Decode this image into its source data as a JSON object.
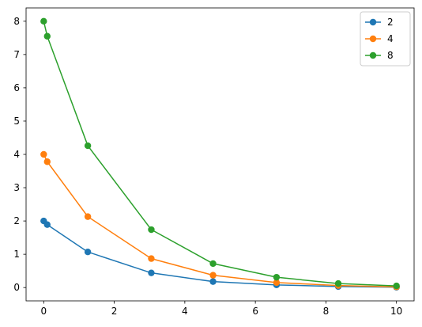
{
  "chart_data": {
    "type": "line",
    "title": "",
    "xlabel": "",
    "ylabel": "",
    "xlim": [
      -0.5,
      10.5
    ],
    "ylim": [
      -0.4,
      8.4
    ],
    "xticks": [
      0,
      2,
      4,
      6,
      8,
      10
    ],
    "yticks": [
      0,
      1,
      2,
      3,
      4,
      5,
      6,
      7,
      8
    ],
    "grid": false,
    "legend_position": "top-right",
    "x": [
      0,
      0.1,
      1.25,
      3.05,
      4.8,
      6.6,
      8.35,
      10.0
    ],
    "series": [
      {
        "name": "2",
        "color": "#1f77b4",
        "marker": "circle",
        "values": [
          2.0,
          1.89,
          1.07,
          0.44,
          0.18,
          0.08,
          0.03,
          0.01
        ]
      },
      {
        "name": "4",
        "color": "#ff7f0e",
        "marker": "circle",
        "values": [
          4.0,
          3.78,
          2.13,
          0.87,
          0.37,
          0.15,
          0.06,
          0.02
        ]
      },
      {
        "name": "8",
        "color": "#2ca02c",
        "marker": "circle",
        "values": [
          8.0,
          7.55,
          4.26,
          1.74,
          0.72,
          0.31,
          0.12,
          0.05
        ]
      }
    ]
  }
}
